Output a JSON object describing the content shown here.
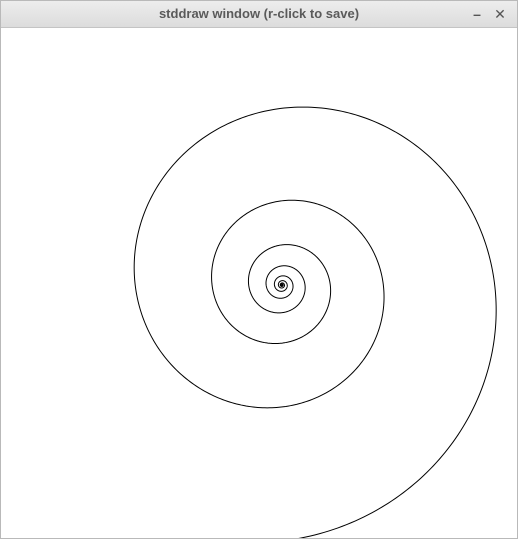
{
  "window": {
    "title": "stddraw window (r-click to save)",
    "minimize_glyph": "–",
    "close_glyph": "✕"
  },
  "drawing": {
    "background_color": "#ffffff",
    "stroke_color": "#000000",
    "shape": "logarithmic spiral"
  }
}
